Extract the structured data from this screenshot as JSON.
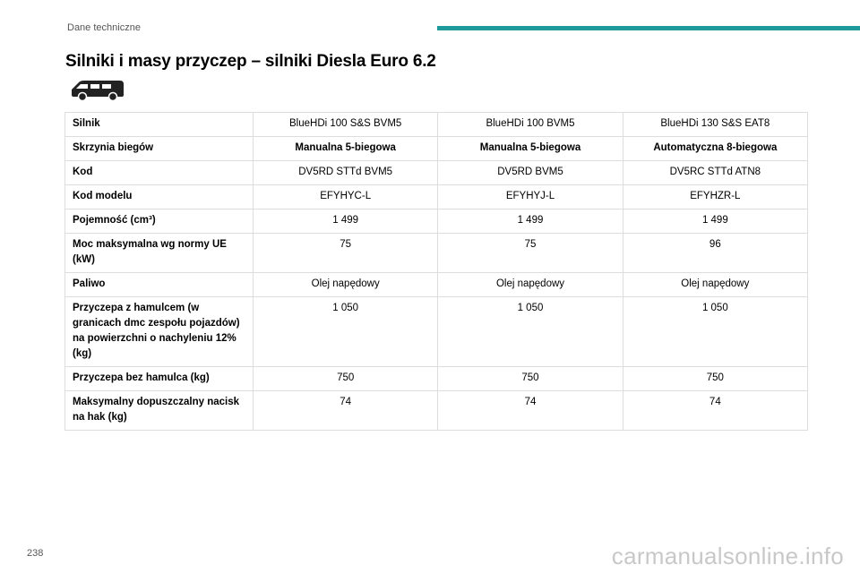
{
  "header": {
    "section": "Dane techniczne"
  },
  "title": "Silniki i masy przyczep – silniki Diesla Euro 6.2",
  "table": {
    "rows": [
      [
        "Silnik",
        "BlueHDi 100 S&S BVM5",
        "BlueHDi 100 BVM5",
        "BlueHDi 130 S&S EAT8"
      ],
      [
        "Skrzynia biegów",
        "Manualna 5-biegowa",
        "Manualna 5-biegowa",
        "Automatyczna 8-biegowa"
      ],
      [
        "Kod",
        "DV5RD STTd BVM5",
        "DV5RD BVM5",
        "DV5RC STTd ATN8"
      ],
      [
        "Kod modelu",
        "EFYHYC-L",
        "EFYHYJ-L",
        "EFYHZR-L"
      ],
      [
        "Pojemność (cm³)",
        "1 499",
        "1 499",
        "1 499"
      ],
      [
        "Moc maksymalna wg normy UE (kW)",
        "75",
        "75",
        "96"
      ],
      [
        "Paliwo",
        "Olej napędowy",
        "Olej napędowy",
        "Olej napędowy"
      ],
      [
        "Przyczepa z hamulcem (w granicach dmc zespołu pojazdów) na powierzchni o nachyleniu 12% (kg)",
        "1 050",
        "1 050",
        "1 050"
      ],
      [
        "Przyczepa bez hamulca (kg)",
        "750",
        "750",
        "750"
      ],
      [
        "Maksymalny dopuszczalny nacisk na hak (kg)",
        "74",
        "74",
        "74"
      ]
    ]
  },
  "page_number": "238",
  "watermark": "carmanualsonline.info"
}
